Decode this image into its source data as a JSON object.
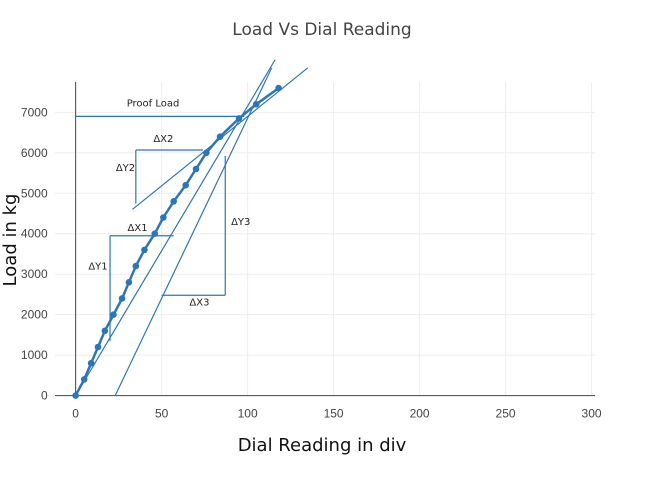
{
  "chart_data": {
    "type": "scatter",
    "title": "Load Vs Dial Reading",
    "xlabel": "Dial Reading in div",
    "ylabel": "Load in kg",
    "xlim": [
      -12,
      302
    ],
    "ylim": [
      -60,
      7750
    ],
    "x_ticks": [
      0,
      50,
      100,
      150,
      200,
      250,
      300
    ],
    "y_ticks": [
      0,
      1000,
      2000,
      3000,
      4000,
      5000,
      6000,
      7000
    ],
    "grid": true,
    "legend": "none",
    "line_color": "#2e75b6",
    "series": [
      {
        "points": [
          {
            "x": 0,
            "y": 0
          },
          {
            "x": 5,
            "y": 400
          },
          {
            "x": 9,
            "y": 800
          },
          {
            "x": 13,
            "y": 1200
          },
          {
            "x": 17,
            "y": 1600
          },
          {
            "x": 22,
            "y": 2000
          },
          {
            "x": 27,
            "y": 2400
          },
          {
            "x": 31,
            "y": 2800
          },
          {
            "x": 35,
            "y": 3200
          },
          {
            "x": 40,
            "y": 3600
          },
          {
            "x": 46,
            "y": 4000
          },
          {
            "x": 51,
            "y": 4400
          },
          {
            "x": 57,
            "y": 4800
          },
          {
            "x": 64,
            "y": 5200
          },
          {
            "x": 70,
            "y": 5600
          },
          {
            "x": 76,
            "y": 6000
          },
          {
            "x": 84,
            "y": 6400
          },
          {
            "x": 95,
            "y": 6850
          },
          {
            "x": 105,
            "y": 7200
          },
          {
            "x": 118,
            "y": 7600
          }
        ]
      }
    ],
    "reference_lines": [
      {
        "x1": 0,
        "y1": 6900,
        "x2": 98,
        "y2": 6900
      },
      {
        "x1": 33,
        "y1": 4600,
        "x2": 135,
        "y2": 8100
      },
      {
        "x1": 0,
        "y1": 0,
        "x2": 116,
        "y2": 8300
      },
      {
        "x1": 23,
        "y1": 0,
        "x2": 114,
        "y2": 8100
      },
      {
        "x1": 20,
        "y1": 1350,
        "x2": 20,
        "y2": 3950
      },
      {
        "x1": 20,
        "y1": 3950,
        "x2": 57,
        "y2": 3950
      },
      {
        "x1": 35,
        "y1": 4750,
        "x2": 35,
        "y2": 6070
      },
      {
        "x1": 35,
        "y1": 6070,
        "x2": 74,
        "y2": 6070
      },
      {
        "x1": 50,
        "y1": 2480,
        "x2": 87,
        "y2": 2480
      },
      {
        "x1": 87,
        "y1": 2480,
        "x2": 87,
        "y2": 5920
      }
    ],
    "annotations": [
      {
        "text": "Proof Load",
        "x": 45,
        "y": 7150
      },
      {
        "text": "ΔX2",
        "x": 51,
        "y": 6270
      },
      {
        "text": "ΔY2",
        "x": 29,
        "y": 5550
      },
      {
        "text": "ΔX1",
        "x": 36,
        "y": 4070
      },
      {
        "text": "ΔY1",
        "x": 13,
        "y": 3110
      },
      {
        "text": "ΔY3",
        "x": 96,
        "y": 4210
      },
      {
        "text": "ΔX3",
        "x": 72,
        "y": 2230
      }
    ]
  }
}
